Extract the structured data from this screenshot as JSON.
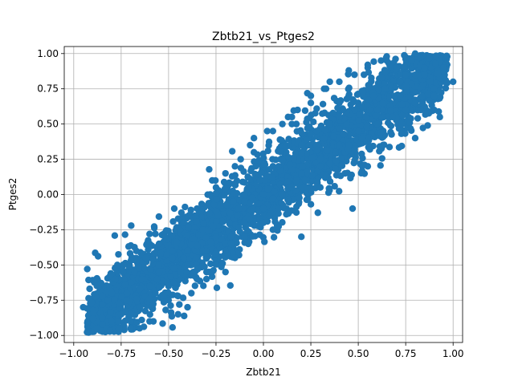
{
  "chart_data": {
    "type": "scatter",
    "title": "Zbtb21_vs_Ptges2",
    "xlabel": "Zbtb21",
    "ylabel": "Ptges2",
    "xlim": [
      -1.05,
      1.05
    ],
    "ylim": [
      -1.05,
      1.05
    ],
    "xticks": [
      -1.0,
      -0.75,
      -0.5,
      -0.25,
      0.0,
      0.25,
      0.5,
      0.75,
      1.0
    ],
    "xtick_labels": [
      "−1.00",
      "−0.75",
      "−0.50",
      "−0.25",
      "0.00",
      "0.25",
      "0.50",
      "0.75",
      "1.00"
    ],
    "yticks": [
      -1.0,
      -0.75,
      -0.5,
      -0.25,
      0.0,
      0.25,
      0.5,
      0.75,
      1.0
    ],
    "ytick_labels": [
      "−1.00",
      "−0.75",
      "−0.50",
      "−0.25",
      "0.00",
      "0.25",
      "0.50",
      "0.75",
      "1.00"
    ],
    "grid": true,
    "marker_color": "#1f77b4",
    "series": [
      {
        "x": [
          -0.95,
          -0.9,
          -0.85,
          -0.8,
          -0.78,
          -0.75,
          -0.72,
          -0.7,
          -0.68,
          -0.65,
          -0.62,
          -0.6,
          -0.58,
          -0.55,
          -0.52,
          -0.5,
          -0.48,
          -0.45,
          -0.42,
          -0.4,
          -0.38,
          -0.35,
          -0.32,
          -0.3,
          -0.28,
          -0.25,
          -0.22,
          -0.2,
          -0.18,
          -0.15,
          -0.12,
          -0.1,
          -0.08,
          -0.05,
          -0.02,
          0.0,
          0.02,
          0.05,
          0.08,
          0.1,
          0.12,
          0.15,
          0.18,
          0.2,
          0.22,
          0.25,
          0.28,
          0.3,
          0.32,
          0.35,
          0.38,
          0.4,
          0.42,
          0.45,
          0.48,
          0.5,
          0.52,
          0.55,
          0.58,
          0.6,
          0.62,
          0.65,
          0.68,
          0.7,
          0.72,
          0.75,
          0.78,
          0.8,
          0.85,
          0.9,
          0.95,
          1.0,
          -0.88,
          -0.82,
          -0.76,
          -0.7,
          -0.66,
          -0.6,
          -0.55,
          -0.5,
          -0.44,
          -0.4,
          -0.36,
          -0.3,
          -0.25,
          -0.2,
          -0.15,
          -0.1,
          -0.05,
          0.0,
          0.05,
          0.1,
          0.15,
          0.2,
          0.25,
          0.3,
          0.35,
          0.4,
          0.45,
          0.5,
          0.55,
          0.6,
          0.65,
          0.7,
          0.75,
          0.8,
          0.85,
          0.9,
          -0.8,
          -0.72,
          -0.64,
          -0.56,
          -0.48,
          -0.4,
          -0.32,
          -0.24,
          -0.16,
          -0.08,
          0.0,
          0.08,
          0.16,
          0.24,
          0.32,
          0.4,
          0.48,
          0.56,
          0.64,
          0.72,
          0.8,
          0.88,
          -0.85,
          -0.7,
          -0.6,
          -0.45,
          -0.35,
          -0.2,
          -0.1,
          0.05,
          0.15,
          0.3,
          0.4,
          0.55,
          0.65,
          0.8,
          0.9,
          -0.77,
          -0.67,
          -0.57,
          -0.47,
          -0.37,
          -0.27,
          -0.17,
          -0.07,
          0.03,
          0.13,
          0.23,
          0.33,
          0.43,
          0.53,
          0.63,
          0.73,
          0.83,
          0.93,
          0.47,
          0.2,
          -0.42,
          -0.6
        ],
        "y": [
          -0.8,
          -0.88,
          -0.92,
          -0.9,
          -0.6,
          -0.85,
          -0.7,
          -0.95,
          -0.55,
          -0.8,
          -0.45,
          -0.65,
          -0.9,
          -0.55,
          -0.3,
          -0.75,
          -0.45,
          -0.85,
          -0.2,
          -0.5,
          -0.7,
          -0.1,
          -0.4,
          -0.6,
          0.0,
          -0.3,
          -0.5,
          0.15,
          -0.2,
          -0.45,
          0.25,
          -0.05,
          -0.35,
          0.4,
          0.1,
          -0.2,
          0.45,
          0.2,
          -0.1,
          0.5,
          0.3,
          0.05,
          0.6,
          0.35,
          0.1,
          0.65,
          0.45,
          0.2,
          0.75,
          0.5,
          0.3,
          0.8,
          0.6,
          0.35,
          0.85,
          0.65,
          0.4,
          0.9,
          0.7,
          0.5,
          0.95,
          0.75,
          0.55,
          0.9,
          0.8,
          0.6,
          0.95,
          1.0,
          0.85,
          0.75,
          0.9,
          0.8,
          -0.95,
          -0.75,
          -0.95,
          -0.85,
          -0.6,
          -0.9,
          -0.35,
          -0.65,
          -0.25,
          -0.8,
          -0.15,
          -0.55,
          0.05,
          -0.4,
          0.2,
          -0.3,
          0.3,
          -0.1,
          0.45,
          0.0,
          0.55,
          0.15,
          0.7,
          0.25,
          0.8,
          0.35,
          0.88,
          0.45,
          0.92,
          0.6,
          0.98,
          0.7,
          0.85,
          0.65,
          0.9,
          0.6,
          -0.7,
          -0.75,
          -0.6,
          -0.6,
          -0.4,
          -0.4,
          -0.25,
          -0.15,
          -0.05,
          0.05,
          0.0,
          0.2,
          0.25,
          0.35,
          0.4,
          0.55,
          0.6,
          0.6,
          0.75,
          0.7,
          0.85,
          0.8,
          -0.72,
          -0.9,
          -0.35,
          -0.72,
          -0.6,
          -0.55,
          0.0,
          -0.25,
          0.5,
          0.05,
          0.65,
          0.2,
          0.95,
          0.4,
          0.7,
          -0.5,
          -0.4,
          -0.7,
          -0.1,
          -0.55,
          0.1,
          -0.35,
          0.35,
          -0.15,
          0.55,
          0.05,
          0.75,
          0.15,
          0.85,
          0.35,
          0.5,
          0.6,
          0.55,
          -0.1,
          -0.3,
          -0.45,
          -0.28
        ]
      }
    ]
  }
}
